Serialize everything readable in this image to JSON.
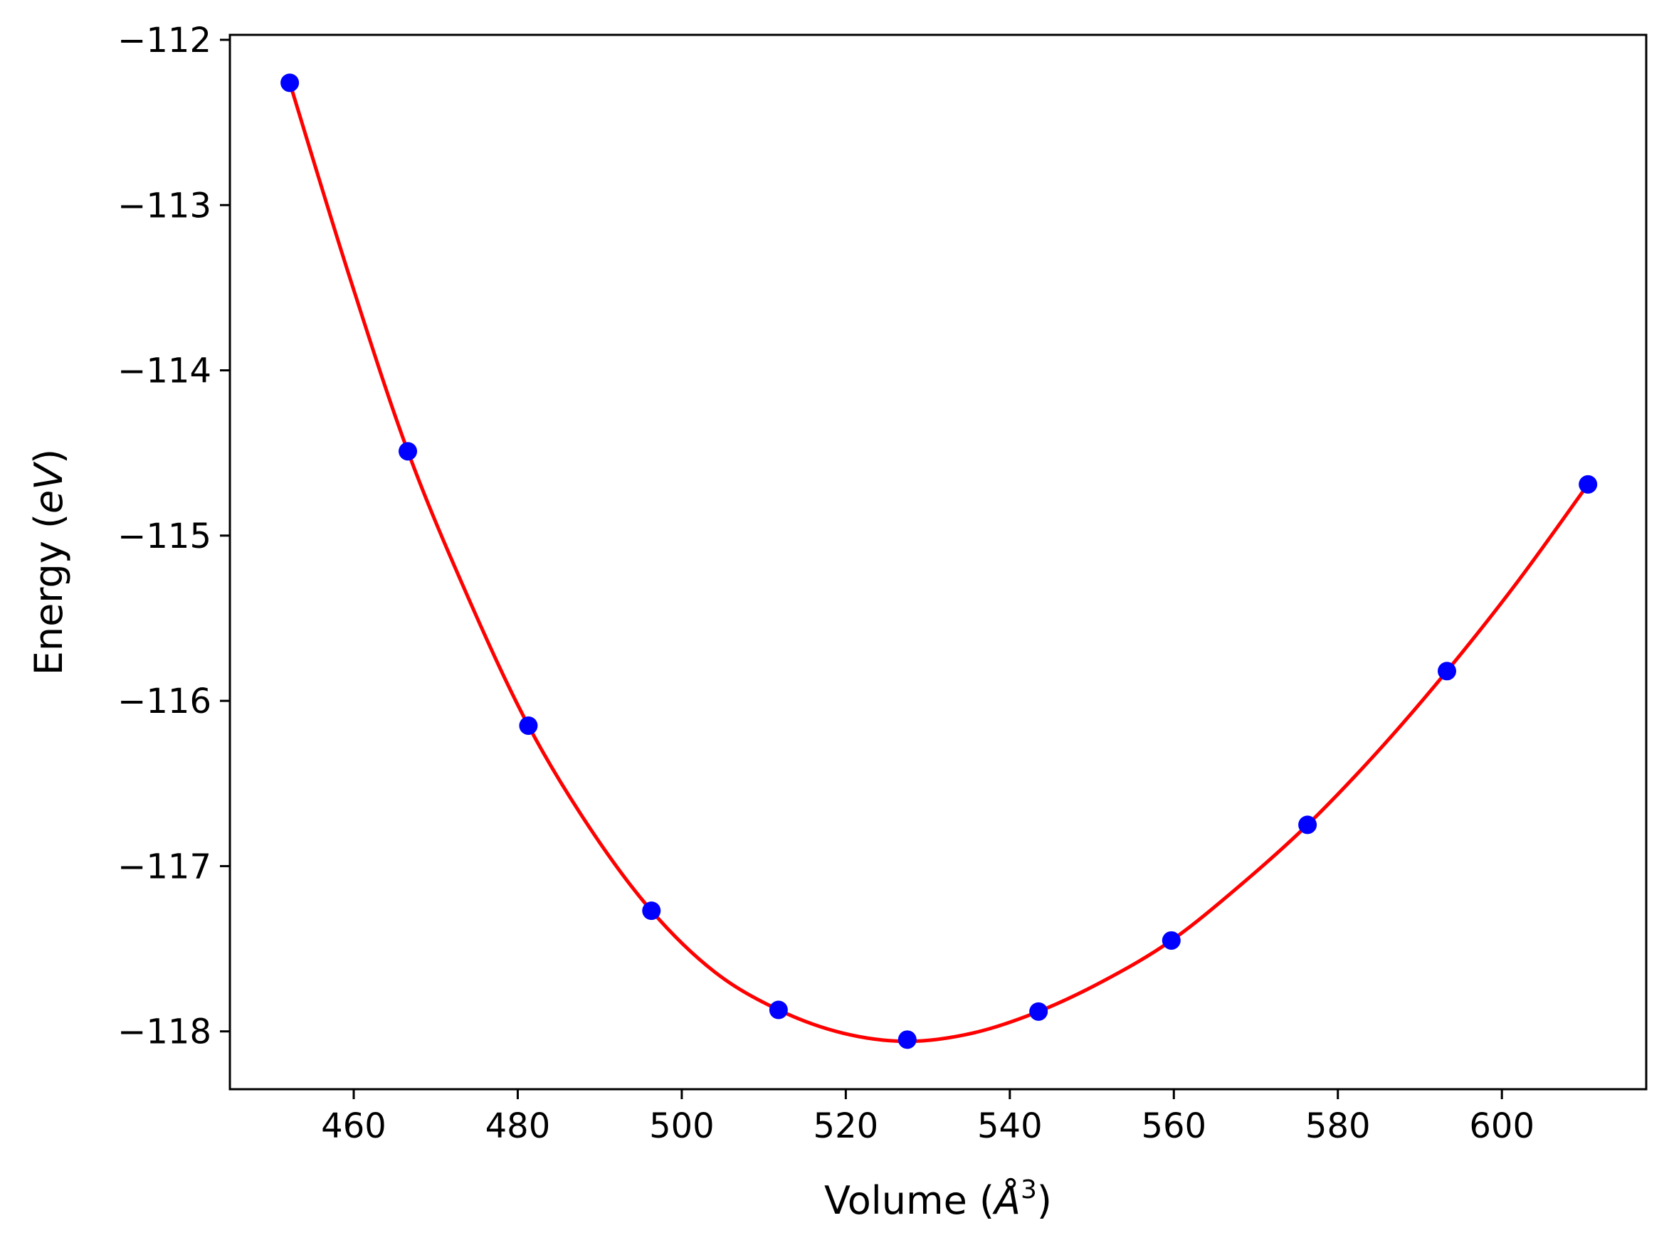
{
  "chart_data": {
    "type": "line",
    "title": "",
    "xlabel": {
      "text": "Volume (",
      "symbol": "Å",
      "exponent": "3",
      "close": ")"
    },
    "ylabel": {
      "text": "Energy (",
      "unit": "eV",
      "close": ")"
    },
    "xlim": [
      444.9,
      617.6
    ],
    "ylim": [
      -118.35,
      -111.97
    ],
    "x_ticks": [
      460,
      480,
      500,
      520,
      540,
      560,
      580,
      600
    ],
    "y_ticks": [
      -112,
      -113,
      -114,
      -115,
      -116,
      -117,
      -118
    ],
    "x_tick_labels": [
      "460",
      "480",
      "500",
      "520",
      "540",
      "560",
      "580",
      "600"
    ],
    "y_tick_labels": [
      "−112",
      "−113",
      "−114",
      "−115",
      "−116",
      "−117",
      "−118"
    ],
    "grid": false,
    "legend": "none",
    "series": [
      {
        "kind": "points",
        "color": "#0000ff",
        "points": [
          {
            "x": 452.2,
            "y": -112.26
          },
          {
            "x": 466.6,
            "y": -114.49
          },
          {
            "x": 481.3,
            "y": -116.15
          },
          {
            "x": 496.3,
            "y": -117.27
          },
          {
            "x": 511.8,
            "y": -117.87
          },
          {
            "x": 527.5,
            "y": -118.05
          },
          {
            "x": 543.5,
            "y": -117.88
          },
          {
            "x": 559.7,
            "y": -117.45
          },
          {
            "x": 576.3,
            "y": -116.75
          },
          {
            "x": 593.3,
            "y": -115.82
          },
          {
            "x": 610.5,
            "y": -114.69
          }
        ]
      },
      {
        "kind": "fit",
        "color": "#ff0000",
        "points": [
          {
            "x": 452.2,
            "y": -112.26
          },
          {
            "x": 459.4,
            "y": -113.42
          },
          {
            "x": 466.6,
            "y": -114.49
          },
          {
            "x": 474.0,
            "y": -115.38
          },
          {
            "x": 481.3,
            "y": -116.15
          },
          {
            "x": 488.8,
            "y": -116.77
          },
          {
            "x": 496.3,
            "y": -117.27
          },
          {
            "x": 504.0,
            "y": -117.64
          },
          {
            "x": 511.8,
            "y": -117.87
          },
          {
            "x": 519.6,
            "y": -118.01
          },
          {
            "x": 527.5,
            "y": -118.06
          },
          {
            "x": 535.5,
            "y": -118.01
          },
          {
            "x": 543.5,
            "y": -117.88
          },
          {
            "x": 551.6,
            "y": -117.69
          },
          {
            "x": 559.7,
            "y": -117.45
          },
          {
            "x": 568.0,
            "y": -117.12
          },
          {
            "x": 576.3,
            "y": -116.75
          },
          {
            "x": 584.8,
            "y": -116.31
          },
          {
            "x": 593.3,
            "y": -115.82
          },
          {
            "x": 601.9,
            "y": -115.28
          },
          {
            "x": 610.5,
            "y": -114.69
          }
        ]
      }
    ]
  }
}
